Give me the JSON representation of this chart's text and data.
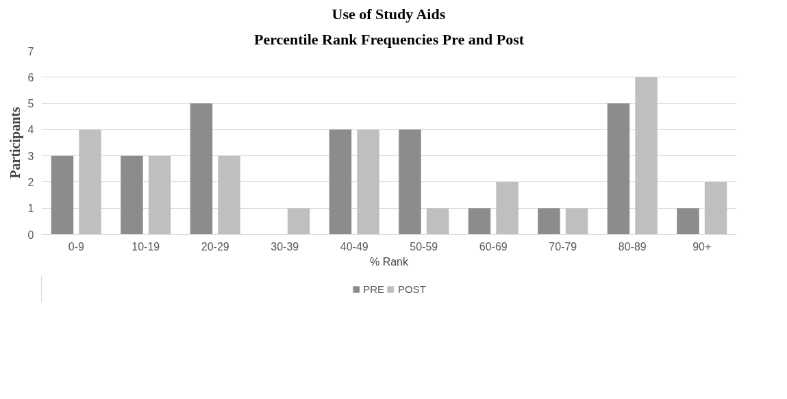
{
  "chart_data": {
    "type": "bar",
    "title": "Use of Study Aids",
    "subtitle": "Percentile Rank Frequencies Pre and Post",
    "xlabel": "% Rank",
    "ylabel": "Participants",
    "categories": [
      "0-9",
      "10-19",
      "20-29",
      "30-39",
      "40-49",
      "50-59",
      "60-69",
      "70-79",
      "80-89",
      "90+"
    ],
    "series": [
      {
        "name": "PRE",
        "color": "#8c8c8c",
        "values": [
          3,
          3,
          5,
          0,
          4,
          4,
          1,
          1,
          5,
          1
        ]
      },
      {
        "name": "POST",
        "color": "#bfbfbf",
        "values": [
          4,
          3,
          3,
          1,
          4,
          1,
          2,
          1,
          6,
          2
        ]
      }
    ],
    "ylim": [
      0,
      7
    ],
    "yticks": [
      0,
      1,
      2,
      3,
      4,
      5,
      6,
      7
    ],
    "grid": "y",
    "legend": "bottom"
  }
}
